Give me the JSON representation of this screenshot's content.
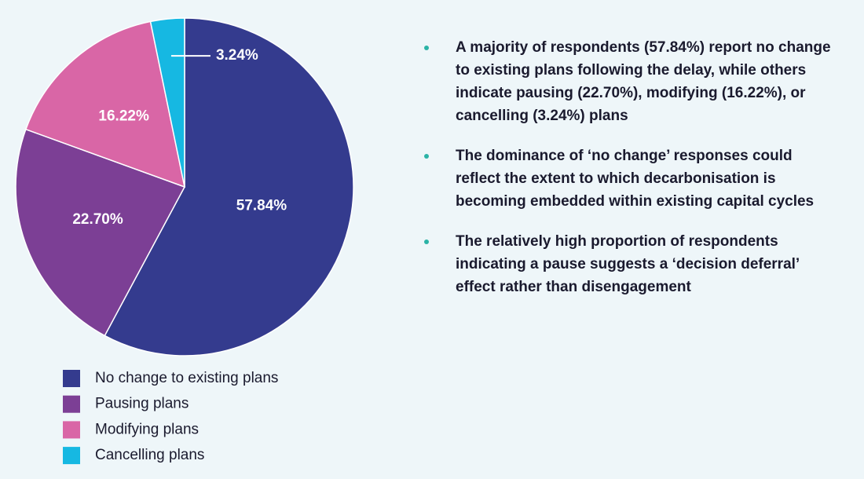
{
  "chart_data": {
    "type": "pie",
    "categories": [
      "No change to existing plans",
      "Pausing plans",
      "Modifying  plans",
      "Cancelling plans"
    ],
    "values": [
      57.84,
      22.7,
      16.22,
      3.24
    ],
    "value_labels": [
      "57.84%",
      "22.70%",
      "16.22%",
      "3.24%"
    ],
    "colors": [
      "#343b8e",
      "#7c3f95",
      "#d966a6",
      "#16b8e2"
    ]
  },
  "bullets": [
    "A majority of respondents (57.84%) report no change to existing plans following the delay, while others indicate pausing (22.70%), modifying (16.22%), or cancelling (3.24%) plans",
    "The dominance of ‘no change’ responses could reflect the extent to which decarbonisation is becoming embedded within existing capital cycles",
    "The relatively high proportion of respondents indicating a pause suggests a ‘decision deferral’ effect rather than disengagement"
  ]
}
